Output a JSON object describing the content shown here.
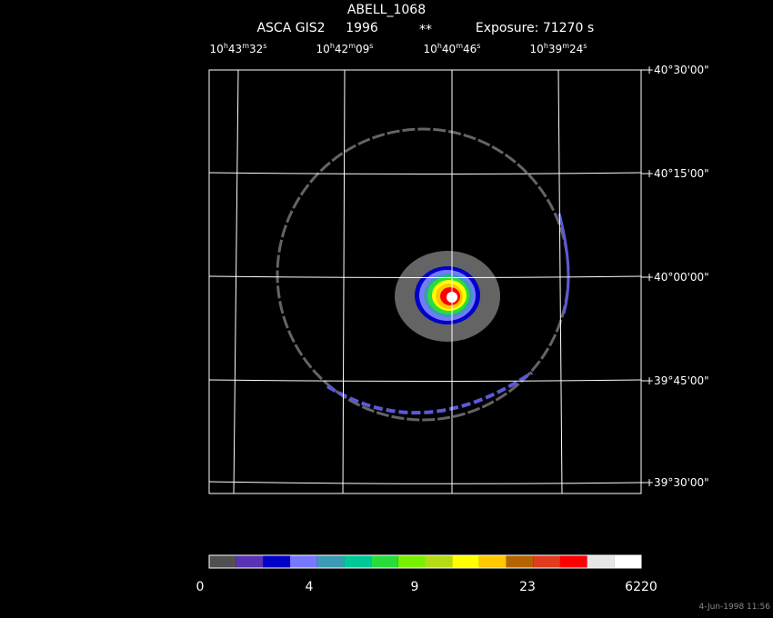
{
  "header": {
    "title": "ABELL_1068",
    "instrument": "ASCA GIS2",
    "year": "1996",
    "flag": "**",
    "exposure": "Exposure: 71270 s"
  },
  "ra_labels": [
    [
      "10",
      "h",
      "43",
      "m",
      "32",
      "s"
    ],
    [
      "10",
      "h",
      "42",
      "m",
      "09",
      "s"
    ],
    [
      "10",
      "h",
      "40",
      "m",
      "46",
      "s"
    ],
    [
      "10",
      "h",
      "39",
      "m",
      "24",
      "s"
    ]
  ],
  "dec_labels": [
    "+40°30'00\"",
    "+40°15'00\"",
    "+40°00'00\"",
    "+39°45'00\"",
    "+39°30'00\""
  ],
  "colorbar": {
    "colors": [
      "#505050",
      "#5a32b4",
      "#0000c8",
      "#7878ff",
      "#3c9bb4",
      "#00c896",
      "#28dc3c",
      "#78f000",
      "#b4dc14",
      "#ffff00",
      "#ffc800",
      "#b46400",
      "#e13c1e",
      "#ff0000",
      "#e6e6e6",
      "#ffffff"
    ],
    "labels": [
      "0",
      "4",
      "9",
      "23",
      "6220"
    ]
  },
  "timestamp": "4-Jun-1998 11:56"
}
